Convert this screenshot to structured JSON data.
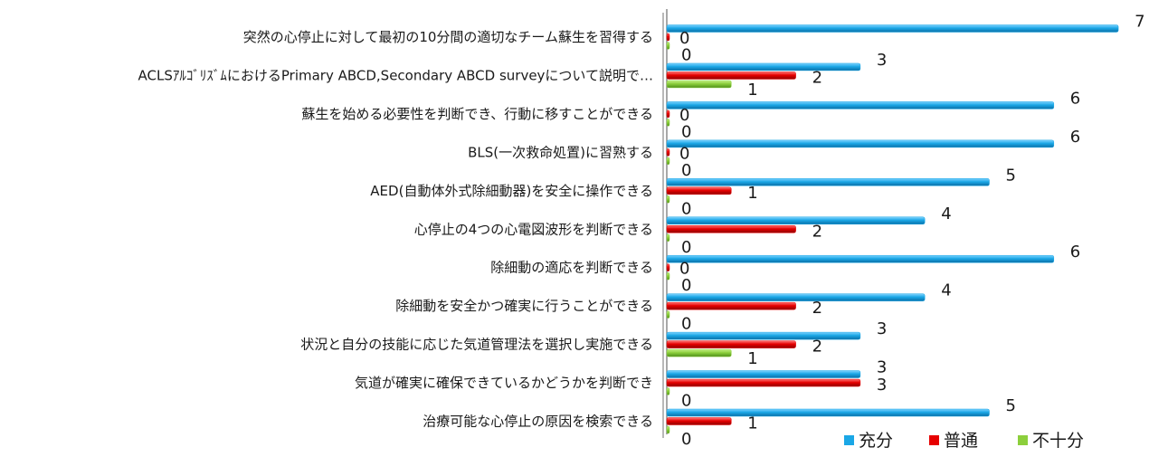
{
  "chart_data": {
    "type": "bar",
    "orientation": "horizontal",
    "title": "",
    "xlabel": "",
    "ylabel": "",
    "xlim": [
      0,
      7
    ],
    "grid": false,
    "legend_position": "bottom-right",
    "categories": [
      "突然の心停止に対して最初の10分間の適切なチーム蘇生を習得する",
      "ACLSｱﾙｺﾞﾘｽﾞﾑにおけるPrimary ABCD,Secondary ABCD surveyについて説明で…",
      "蘇生を始める必要性を判断でき、行動に移すことができる",
      "BLS(一次救命処置)に習熟する",
      "AED(自動体外式除細動器)を安全に操作できる",
      "心停止の4つの心電図波形を判断できる",
      "除細動の適応を判断できる",
      "除細動を安全かつ確実に行うことができる",
      "状況と自分の技能に応じた気道管理法を選択し実施できる",
      "気道が確実に確保できているかどうかを判断でき",
      "治療可能な心停止の原因を検索できる"
    ],
    "series": [
      {
        "name": "充分",
        "color": "#1aa7e6",
        "values": [
          7,
          3,
          6,
          6,
          5,
          4,
          6,
          4,
          3,
          3,
          5
        ]
      },
      {
        "name": "普通",
        "color": "#e60000",
        "values": [
          0,
          2,
          0,
          0,
          1,
          2,
          0,
          2,
          2,
          3,
          1
        ]
      },
      {
        "name": "不十分",
        "color": "#8ccf3c",
        "values": [
          0,
          1,
          0,
          0,
          0,
          0,
          0,
          0,
          1,
          0,
          0
        ]
      }
    ]
  }
}
